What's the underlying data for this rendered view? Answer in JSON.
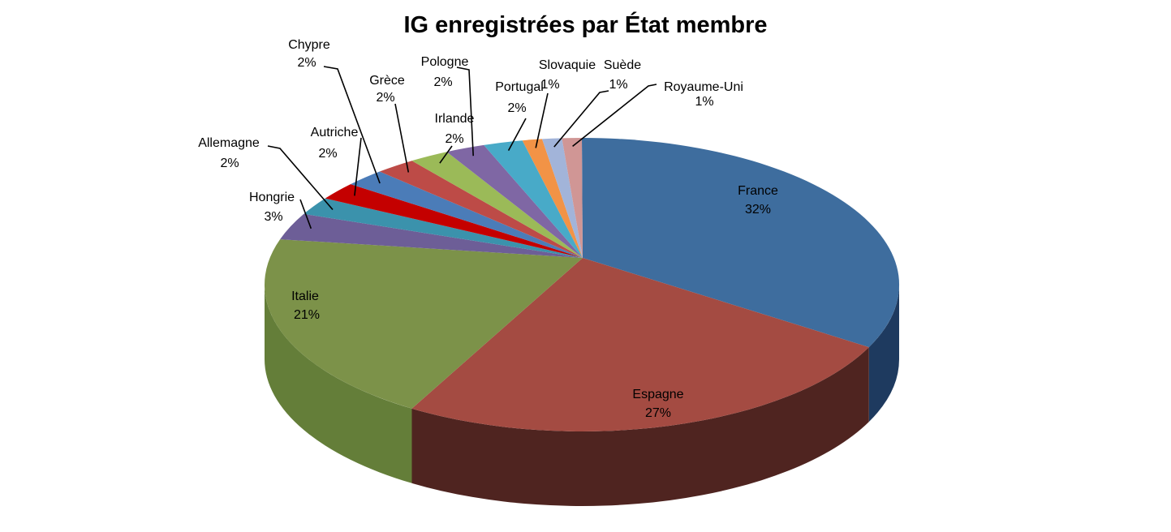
{
  "title": "IG enregistrées par État membre",
  "background_color": "#FFFFFF",
  "text_color": "#000000",
  "chart_data": {
    "type": "pie",
    "style": "3d",
    "title": "IG enregistrées par État membre",
    "unit": "percent",
    "legend": false,
    "data_labels": "category_name_and_percentage",
    "start_angle_deg": -90,
    "direction": "clockwise",
    "slices": [
      {
        "label": "France",
        "pct": 32,
        "pct_label": "32%",
        "color": "#3E6D9E",
        "side": "#1E3A5F"
      },
      {
        "label": "Espagne",
        "pct": 27,
        "pct_label": "27%",
        "color": "#A44B42",
        "side": "#4F2420"
      },
      {
        "label": "Italie",
        "pct": 21,
        "pct_label": "21%",
        "color": "#7C9249",
        "side": "#647E39"
      },
      {
        "label": "Hongrie",
        "pct": 3,
        "pct_label": "3%",
        "color": "#6D5E97"
      },
      {
        "label": "Allemagne",
        "pct": 2,
        "pct_label": "2%",
        "color": "#3B92AC"
      },
      {
        "label": "Autriche",
        "pct": 2,
        "pct_label": "2%",
        "color": "#C40000"
      },
      {
        "label": "Chypre",
        "pct": 2,
        "pct_label": "2%",
        "color": "#4B7CB8"
      },
      {
        "label": "Grèce",
        "pct": 2,
        "pct_label": "2%",
        "color": "#BD4B47"
      },
      {
        "label": "Irlande",
        "pct": 2,
        "pct_label": "2%",
        "color": "#9BBA58"
      },
      {
        "label": "Pologne",
        "pct": 2,
        "pct_label": "2%",
        "color": "#7F67A4"
      },
      {
        "label": "Portugal",
        "pct": 2,
        "pct_label": "2%",
        "color": "#48AAC8"
      },
      {
        "label": "Slovaquie",
        "pct": 1,
        "pct_label": "1%",
        "color": "#F29346"
      },
      {
        "label": "Suède",
        "pct": 1,
        "pct_label": "1%",
        "color": "#A2B4D9"
      },
      {
        "label": "Royaume-Uni",
        "pct": 1,
        "pct_label": "1%",
        "color": "#D09695"
      }
    ]
  }
}
